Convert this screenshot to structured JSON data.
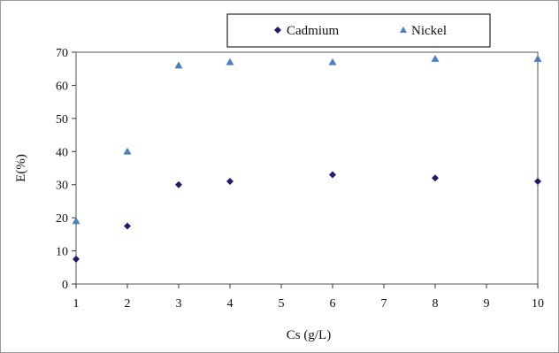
{
  "chart_data": {
    "type": "scatter",
    "title": "",
    "xlabel": "Cs (g/L)",
    "ylabel": "E(%)",
    "x": [
      1,
      2,
      3,
      4,
      6,
      8,
      10
    ],
    "x_tick_labels": [
      "1",
      "2",
      "3",
      "4",
      "5",
      "6",
      "7",
      "8",
      "9",
      "10"
    ],
    "ylim": [
      0,
      70
    ],
    "y_ticks": [
      0,
      10,
      20,
      30,
      40,
      50,
      60,
      70
    ],
    "grid": false,
    "legend_position": "top",
    "series": [
      {
        "name": "Cadmium",
        "marker": "diamond",
        "color": "#1f1b6e",
        "values": [
          7.5,
          17.5,
          30,
          31,
          33,
          32,
          31
        ]
      },
      {
        "name": "Nickel",
        "marker": "triangle",
        "color": "#4a7fc1",
        "values": [
          19,
          40,
          66,
          67,
          67,
          68,
          68
        ]
      }
    ]
  }
}
